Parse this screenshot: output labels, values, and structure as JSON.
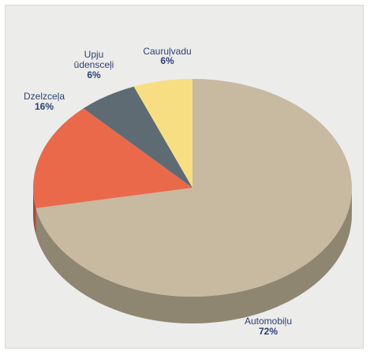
{
  "chart_data": {
    "type": "pie",
    "style": "3d",
    "title": "",
    "start_angle_deg": -90,
    "direction": "clockwise",
    "slices": [
      {
        "key": "automobilu",
        "label": "Automobiļu",
        "value": 72,
        "value_label": "72%",
        "color": "#c8b9a1",
        "side_color": "#8f8672"
      },
      {
        "key": "dzelzcela",
        "label": "Dzelzceļa",
        "value": 16,
        "value_label": "16%",
        "color": "#e9694a",
        "side_color": "#a84933"
      },
      {
        "key": "upju",
        "label": "Upju ūdensceļi",
        "label_lines": [
          "Upju",
          "ūdensceļi"
        ],
        "value": 6,
        "value_label": "6%",
        "color": "#5f6b73",
        "side_color": "#3f474d"
      },
      {
        "key": "caurulvadu",
        "label": "Cauruļvadu",
        "value": 6,
        "value_label": "6%",
        "color": "#f7de83",
        "side_color": "#b9a35b"
      }
    ]
  }
}
